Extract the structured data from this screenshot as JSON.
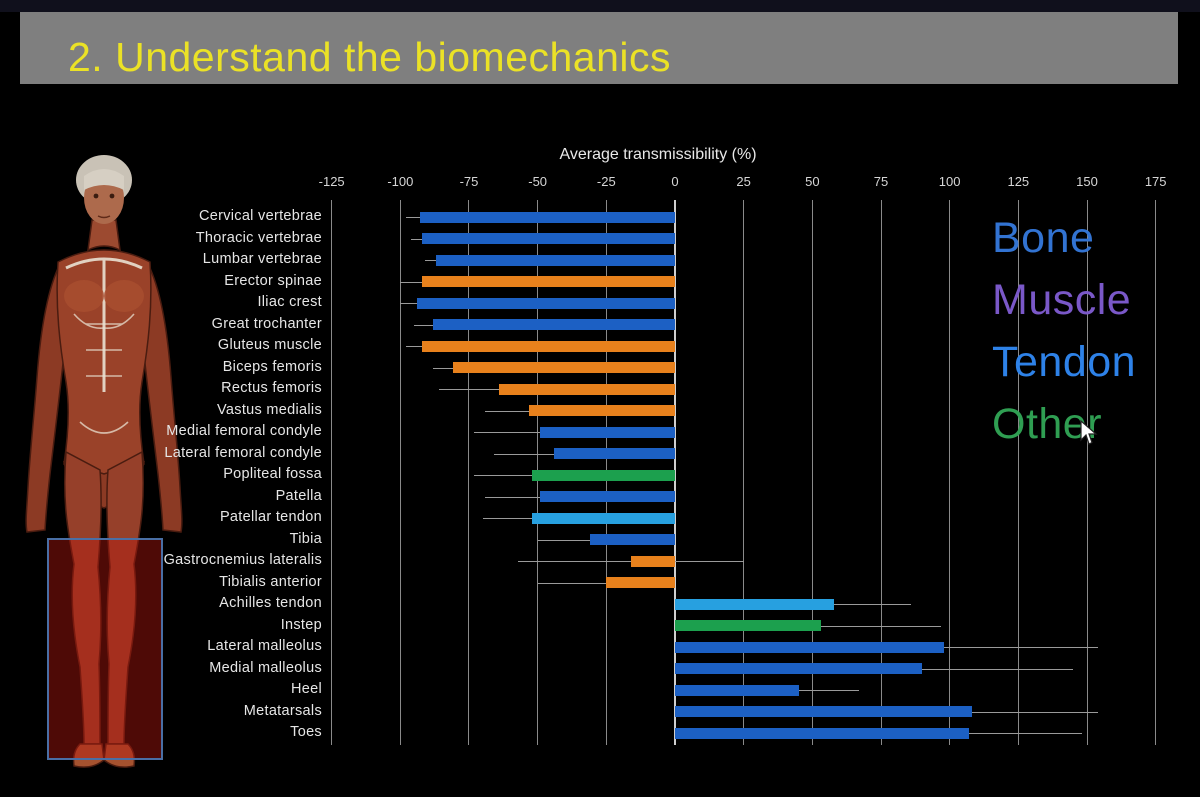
{
  "slide": {
    "title": "2. Understand the biomechanics",
    "title_color": "#ebe226",
    "banner_color": "#7f7f7f",
    "background_color": "#000000"
  },
  "figure": {
    "name": "anatomical-muscle-figure",
    "highlight_region": "lower-legs",
    "highlight_fill": "rgba(185,25,15,0.42)",
    "highlight_border": "#4a6fa5"
  },
  "legend": [
    {
      "label": "Bone",
      "color": "#3273d2"
    },
    {
      "label": "Muscle",
      "color": "#7a58c8"
    },
    {
      "label": "Tendon",
      "color": "#2e82e8"
    },
    {
      "label": "Other",
      "color": "#2f9e52"
    }
  ],
  "chart_data": {
    "type": "bar",
    "orientation": "horizontal",
    "title": "Average transmissibility (%)",
    "xlabel": "Average transmissibility (%)",
    "xlim": [
      -130,
      180
    ],
    "xticks": [
      -125,
      -100,
      -75,
      -50,
      -25,
      0,
      25,
      50,
      75,
      100,
      125,
      150,
      175
    ],
    "grid": "vertical",
    "categories": [
      "Cervical vertebrae",
      "Thoracic vertebrae",
      "Lumbar vertebrae",
      "Erector spinae",
      "Iliac crest",
      "Great trochanter",
      "Gluteus muscle",
      "Biceps femoris",
      "Rectus femoris",
      "Vastus medialis",
      "Medial femoral condyle",
      "Lateral femoral condyle",
      "Popliteal fossa",
      "Patella",
      "Patellar tendon",
      "Tibia",
      "Gastrocnemius lateralis",
      "Tibialis anterior",
      "Achilles tendon",
      "Instep",
      "Lateral malleolus",
      "Medial malleolus",
      "Heel",
      "Metatarsals",
      "Toes"
    ],
    "values": [
      -93,
      -92,
      -87,
      -92,
      -94,
      -88,
      -92,
      -81,
      -64,
      -53,
      -49,
      -44,
      -52,
      -49,
      -52,
      -31,
      -16,
      -25,
      58,
      53,
      98,
      90,
      45,
      108,
      107
    ],
    "errors": [
      5,
      4,
      4,
      8,
      6,
      7,
      6,
      7,
      22,
      16,
      24,
      22,
      21,
      20,
      18,
      19,
      41,
      25,
      28,
      44,
      56,
      55,
      22,
      46,
      41
    ],
    "groups": [
      "bone",
      "bone",
      "bone",
      "muscle",
      "bone",
      "bone",
      "muscle",
      "muscle",
      "muscle",
      "muscle",
      "bone",
      "bone",
      "other",
      "bone",
      "tendon",
      "bone",
      "muscle",
      "muscle",
      "tendon",
      "other",
      "bone",
      "bone",
      "bone",
      "bone",
      "bone"
    ],
    "colors": {
      "bone": "#1c60c4",
      "muscle": "#e8811c",
      "tendon": "#27a0e0",
      "other": "#1ca04e"
    },
    "legend_position": "right"
  }
}
